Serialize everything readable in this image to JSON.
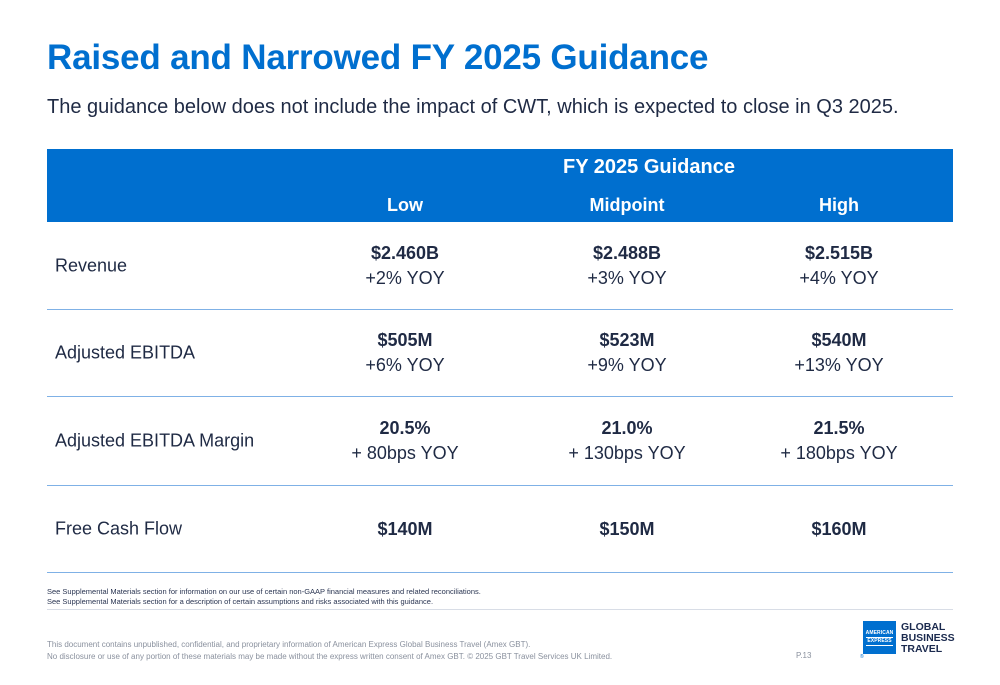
{
  "header": {
    "title": "Raised and Narrowed FY 2025 Guidance",
    "subtitle": "The guidance below does not include the impact of CWT, which is expected to close in Q3 2025."
  },
  "table": {
    "group_header": "FY 2025 Guidance",
    "columns": [
      "Low",
      "Midpoint",
      "High"
    ],
    "rows": [
      {
        "label": "Revenue",
        "cells": [
          {
            "value": "$2.460B",
            "change": "+2% YOY"
          },
          {
            "value": "$2.488B",
            "change": "+3% YOY"
          },
          {
            "value": "$2.515B",
            "change": "+4% YOY"
          }
        ]
      },
      {
        "label": "Adjusted EBITDA",
        "cells": [
          {
            "value": "$505M",
            "change": "+6% YOY"
          },
          {
            "value": "$523M",
            "change": "+9% YOY"
          },
          {
            "value": "$540M",
            "change": "+13% YOY"
          }
        ]
      },
      {
        "label": "Adjusted EBITDA Margin",
        "cells": [
          {
            "value": "20.5%",
            "change": "+ 80bps YOY"
          },
          {
            "value": "21.0%",
            "change": "+ 130bps YOY"
          },
          {
            "value": "21.5%",
            "change": "+ 180bps YOY"
          }
        ]
      },
      {
        "label": "Free Cash Flow",
        "cells": [
          {
            "value": "$140M",
            "change": ""
          },
          {
            "value": "$150M",
            "change": ""
          },
          {
            "value": "$160M",
            "change": ""
          }
        ]
      }
    ]
  },
  "notes": [
    "See Supplemental Materials section for information on our use of certain non-GAAP financial measures and related reconciliations.",
    "See Supplemental Materials section for a description of certain assumptions and risks associated with this guidance."
  ],
  "footer": {
    "legal_line1": "This document contains unpublished, confidential, and proprietary information of American Express Global Business Travel (Amex GBT).",
    "legal_line2": "No disclosure or use of any portion of these materials may be made without the express written consent of Amex GBT. © 2025 GBT Travel Services UK Limited.",
    "page_number": "P.13"
  },
  "logo": {
    "box_line1": "AMERICAN",
    "box_line2": "EXPRESS",
    "text_lines": [
      "GLOBAL",
      "BUSINESS",
      "TRAVEL"
    ],
    "brand_color": "#006fcf"
  }
}
